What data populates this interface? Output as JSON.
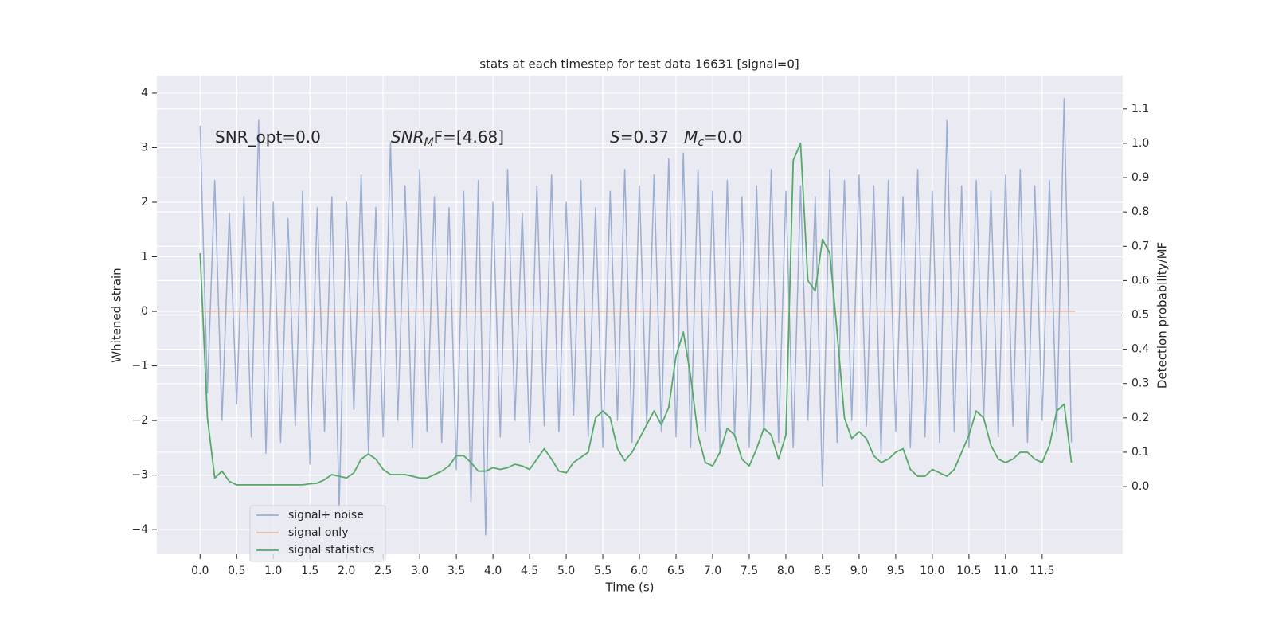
{
  "chart_data": {
    "type": "line",
    "title": "stats at each timestep for test data 16631 [signal=0]",
    "xlabel": "Time (s)",
    "ylabel": "Whitened strain",
    "y2label": "Detection probability/MF",
    "annotations": [
      {
        "parts": [
          {
            "text": "SNR_opt=0.0"
          }
        ]
      },
      {
        "parts": [
          {
            "text": "SNR",
            "italic": true
          },
          {
            "text": "M",
            "italic": true,
            "sub": true
          },
          {
            "text": "F=[4.68]",
            "italic": false
          }
        ]
      },
      {
        "parts": [
          {
            "text": "S",
            "italic": true
          },
          {
            "text": "=0.37   "
          },
          {
            "text": "M",
            "italic": true
          },
          {
            "text": "c",
            "italic": true,
            "sub": true
          },
          {
            "text": "=0.0"
          }
        ]
      }
    ],
    "x": [
      0.0,
      0.1,
      0.2,
      0.3,
      0.4,
      0.5,
      0.6,
      0.7,
      0.8,
      0.9,
      1.0,
      1.1,
      1.2,
      1.3,
      1.4,
      1.5,
      1.6,
      1.7,
      1.8,
      1.9,
      2.0,
      2.1,
      2.2,
      2.3,
      2.4,
      2.5,
      2.6,
      2.7,
      2.8,
      2.9,
      3.0,
      3.1,
      3.2,
      3.3,
      3.4,
      3.5,
      3.6,
      3.7,
      3.8,
      3.9,
      4.0,
      4.1,
      4.2,
      4.3,
      4.4,
      4.5,
      4.6,
      4.7,
      4.8,
      4.9,
      5.0,
      5.1,
      5.2,
      5.3,
      5.4,
      5.5,
      5.6,
      5.7,
      5.8,
      5.9,
      6.0,
      6.1,
      6.2,
      6.3,
      6.4,
      6.5,
      6.6,
      6.7,
      6.8,
      6.9,
      7.0,
      7.1,
      7.2,
      7.3,
      7.4,
      7.5,
      7.6,
      7.7,
      7.8,
      7.9,
      8.0,
      8.1,
      8.2,
      8.3,
      8.4,
      8.5,
      8.6,
      8.7,
      8.8,
      8.9,
      9.0,
      9.1,
      9.2,
      9.3,
      9.4,
      9.5,
      9.6,
      9.7,
      9.8,
      9.9,
      10.0,
      10.1,
      10.2,
      10.3,
      10.4,
      10.5,
      10.6,
      10.7,
      10.8,
      10.9,
      11.0,
      11.1,
      11.2,
      11.3,
      11.4,
      11.5,
      11.6,
      11.7,
      11.8,
      11.9
    ],
    "series": [
      {
        "name": "signal+ noise",
        "color": "#4c72b0",
        "opacity": 0.5,
        "axis": "y",
        "values": [
          3.4,
          -1.5,
          2.4,
          -2.0,
          1.8,
          -1.7,
          2.1,
          -2.3,
          3.5,
          -2.6,
          2.0,
          -2.4,
          1.7,
          -2.1,
          2.2,
          -2.8,
          1.9,
          -2.2,
          2.1,
          -3.6,
          2.0,
          -1.8,
          2.5,
          -2.6,
          1.9,
          -2.3,
          3.1,
          -2.0,
          2.3,
          -2.5,
          2.6,
          -2.2,
          2.1,
          -2.4,
          1.9,
          -2.9,
          2.2,
          -3.5,
          2.4,
          -4.1,
          2.0,
          -2.3,
          2.6,
          -2.0,
          1.8,
          -2.4,
          2.3,
          -2.1,
          2.5,
          -2.2,
          2.0,
          -1.9,
          2.4,
          -2.3,
          1.9,
          -2.5,
          2.2,
          -2.0,
          2.6,
          -2.4,
          2.3,
          -2.1,
          2.5,
          -2.2,
          2.8,
          -2.3,
          2.9,
          -2.5,
          2.6,
          -2.2,
          2.2,
          -2.6,
          2.4,
          -2.3,
          2.1,
          -2.5,
          2.3,
          -2.2,
          2.6,
          -2.4,
          2.2,
          -2.5,
          2.3,
          -2.0,
          2.1,
          -3.2,
          2.6,
          -2.4,
          2.4,
          -2.0,
          2.5,
          -2.1,
          2.3,
          -2.6,
          2.4,
          -2.2,
          2.1,
          -2.5,
          2.6,
          -2.3,
          2.2,
          -2.4,
          3.5,
          -2.2,
          2.3,
          -2.5,
          2.4,
          -2.0,
          2.2,
          -2.3,
          2.5,
          -2.1,
          2.6,
          -2.4,
          2.3,
          -2.0,
          2.4,
          -2.2,
          3.9,
          -2.4
        ]
      },
      {
        "name": "signal only",
        "color": "#dd8452",
        "opacity": 0.5,
        "axis": "y",
        "x": [
          0.0,
          11.95
        ],
        "values": [
          0,
          0
        ]
      },
      {
        "name": "signal statistics",
        "color": "#55a868",
        "opacity": 1,
        "axis": "y2",
        "values": [
          0.68,
          0.2,
          0.025,
          0.045,
          0.015,
          0.005,
          0.005,
          0.005,
          0.005,
          0.005,
          0.005,
          0.005,
          0.005,
          0.005,
          0.005,
          0.008,
          0.01,
          0.02,
          0.035,
          0.03,
          0.025,
          0.04,
          0.08,
          0.095,
          0.08,
          0.05,
          0.035,
          0.035,
          0.035,
          0.03,
          0.025,
          0.025,
          0.035,
          0.045,
          0.06,
          0.09,
          0.09,
          0.07,
          0.045,
          0.045,
          0.055,
          0.05,
          0.055,
          0.065,
          0.06,
          0.05,
          0.08,
          0.11,
          0.08,
          0.045,
          0.04,
          0.07,
          0.085,
          0.1,
          0.2,
          0.22,
          0.2,
          0.11,
          0.075,
          0.1,
          0.14,
          0.18,
          0.22,
          0.18,
          0.23,
          0.38,
          0.45,
          0.32,
          0.15,
          0.07,
          0.06,
          0.1,
          0.17,
          0.15,
          0.08,
          0.06,
          0.11,
          0.17,
          0.15,
          0.08,
          0.15,
          0.95,
          1.0,
          0.6,
          0.57,
          0.72,
          0.68,
          0.45,
          0.2,
          0.14,
          0.16,
          0.14,
          0.09,
          0.07,
          0.08,
          0.1,
          0.11,
          0.05,
          0.03,
          0.03,
          0.05,
          0.04,
          0.03,
          0.05,
          0.1,
          0.15,
          0.22,
          0.2,
          0.12,
          0.08,
          0.07,
          0.08,
          0.1,
          0.1,
          0.08,
          0.07,
          0.12,
          0.22,
          0.24,
          0.07
        ]
      }
    ],
    "xlim": [
      -0.59,
      12.6
    ],
    "xticks": [
      {
        "value": 0,
        "label": "0.0"
      },
      0.5,
      {
        "value": 1,
        "label": "1.0"
      },
      1.5,
      {
        "value": 2,
        "label": "2.0"
      },
      2.5,
      {
        "value": 3,
        "label": "3.0"
      },
      3.5,
      {
        "value": 4,
        "label": "4.0"
      },
      4.5,
      {
        "value": 5,
        "label": "5.0"
      },
      5.5,
      {
        "value": 6,
        "label": "6.0"
      },
      6.5,
      {
        "value": 7,
        "label": "7.0"
      },
      7.5,
      {
        "value": 8,
        "label": "8.0"
      },
      8.5,
      {
        "value": 9,
        "label": "9.0"
      },
      9.5,
      {
        "value": 10,
        "label": "10.0"
      },
      10.5,
      {
        "value": 11,
        "label": "11.0"
      },
      11.5
    ],
    "ylim": [
      -4.45,
      4.32
    ],
    "yticks": [
      {
        "value": -4,
        "label": "−4"
      },
      {
        "value": -3,
        "label": "−3"
      },
      {
        "value": -2,
        "label": "−2"
      },
      {
        "value": -1,
        "label": "−1"
      },
      0,
      1,
      2,
      3,
      4
    ],
    "y2lim": [
      -0.197,
      1.197
    ],
    "y2ticks": [
      {
        "value": 0,
        "label": "0.0"
      },
      0.1,
      0.2,
      0.3,
      0.4,
      0.5,
      0.6,
      0.7,
      0.8,
      0.9,
      {
        "value": 1,
        "label": "1.0"
      },
      1.1
    ],
    "grid": true,
    "legend": "lower left"
  }
}
